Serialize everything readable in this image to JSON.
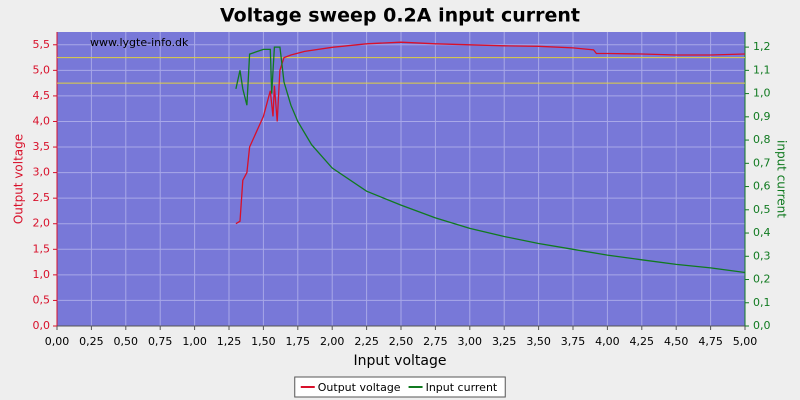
{
  "chart_data": {
    "type": "line",
    "title": "Voltage sweep 0.2A input current",
    "watermark": "www.lygte-info.dk",
    "x_label": "Input voltage",
    "y_label": "Output voltage",
    "y2_label": "input current",
    "xlim": [
      0,
      5
    ],
    "ylim": [
      0,
      5.75
    ],
    "y2lim": [
      0,
      1.265
    ],
    "grid": true,
    "legend": "bottom",
    "reference_lines": {
      "color": "#e0d040",
      "values": [
        4.75,
        5.25
      ]
    },
    "xticks": [
      {
        "value": 0,
        "label": "0,00"
      },
      {
        "value": 0.25,
        "label": "0,25"
      },
      {
        "value": 0.5,
        "label": "0,50"
      },
      {
        "value": 0.75,
        "label": "0,75"
      },
      {
        "value": 1,
        "label": "1,00"
      },
      {
        "value": 1.25,
        "label": "1,25"
      },
      {
        "value": 1.5,
        "label": "1,50"
      },
      {
        "value": 1.75,
        "label": "1,75"
      },
      {
        "value": 2,
        "label": "2,00"
      },
      {
        "value": 2.25,
        "label": "2,25"
      },
      {
        "value": 2.5,
        "label": "2,50"
      },
      {
        "value": 2.75,
        "label": "2,75"
      },
      {
        "value": 3,
        "label": "3,00"
      },
      {
        "value": 3.25,
        "label": "3,25"
      },
      {
        "value": 3.5,
        "label": "3,50"
      },
      {
        "value": 3.75,
        "label": "3,75"
      },
      {
        "value": 4,
        "label": "4,00"
      },
      {
        "value": 4.25,
        "label": "4,25"
      },
      {
        "value": 4.5,
        "label": "4,50"
      },
      {
        "value": 4.75,
        "label": "4,75"
      },
      {
        "value": 5,
        "label": "5,00"
      }
    ],
    "yticks": [
      {
        "value": 0,
        "label": "0,0"
      },
      {
        "value": 0.5,
        "label": "0,5"
      },
      {
        "value": 1,
        "label": "1,0"
      },
      {
        "value": 1.5,
        "label": "1,5"
      },
      {
        "value": 2,
        "label": "2,0"
      },
      {
        "value": 2.5,
        "label": "2,5"
      },
      {
        "value": 3,
        "label": "3,0"
      },
      {
        "value": 3.5,
        "label": "3,5"
      },
      {
        "value": 4,
        "label": "4,0"
      },
      {
        "value": 4.5,
        "label": "4,5"
      },
      {
        "value": 5,
        "label": "5,0"
      },
      {
        "value": 5.5,
        "label": "5,5"
      }
    ],
    "y2ticks": [
      {
        "value": 0,
        "label": "0,0"
      },
      {
        "value": 0.1,
        "label": "0,1"
      },
      {
        "value": 0.2,
        "label": "0,2"
      },
      {
        "value": 0.3,
        "label": "0,3"
      },
      {
        "value": 0.4,
        "label": "0,4"
      },
      {
        "value": 0.5,
        "label": "0,5"
      },
      {
        "value": 0.6,
        "label": "0,6"
      },
      {
        "value": 0.7,
        "label": "0,7"
      },
      {
        "value": 0.8,
        "label": "0,8"
      },
      {
        "value": 0.9,
        "label": "0,9"
      },
      {
        "value": 1,
        "label": "1,0"
      },
      {
        "value": 1.1,
        "label": "1,1"
      },
      {
        "value": 1.2,
        "label": "1,2"
      }
    ],
    "series": [
      {
        "name": "Output voltage",
        "color": "#d8102a",
        "x": [
          1.3,
          1.33,
          1.35,
          1.38,
          1.4,
          1.45,
          1.5,
          1.55,
          1.57,
          1.58,
          1.6,
          1.62,
          1.65,
          1.7,
          1.8,
          2.0,
          2.25,
          2.5,
          2.75,
          3.0,
          3.25,
          3.5,
          3.75,
          3.9,
          3.92,
          4.0,
          4.25,
          4.5,
          4.75,
          5.0
        ],
        "values": [
          2.0,
          2.05,
          2.85,
          3.0,
          3.5,
          3.8,
          4.1,
          4.6,
          4.1,
          4.7,
          4.0,
          5.0,
          5.25,
          5.3,
          5.37,
          5.45,
          5.52,
          5.55,
          5.52,
          5.5,
          5.48,
          5.47,
          5.44,
          5.4,
          5.33,
          5.33,
          5.32,
          5.3,
          5.3,
          5.32
        ]
      },
      {
        "name": "Input current",
        "color": "#107a20",
        "axis": "y2",
        "x": [
          1.3,
          1.33,
          1.35,
          1.38,
          1.4,
          1.5,
          1.55,
          1.56,
          1.58,
          1.62,
          1.63,
          1.65,
          1.7,
          1.75,
          1.85,
          2.0,
          2.25,
          2.5,
          2.75,
          3.0,
          3.25,
          3.5,
          3.75,
          4.0,
          4.25,
          4.5,
          4.75,
          5.0
        ],
        "values": [
          1.02,
          1.1,
          1.02,
          0.95,
          1.17,
          1.19,
          1.19,
          1.0,
          1.2,
          1.2,
          1.15,
          1.05,
          0.95,
          0.88,
          0.78,
          0.68,
          0.58,
          0.52,
          0.465,
          0.42,
          0.385,
          0.355,
          0.33,
          0.305,
          0.285,
          0.265,
          0.25,
          0.23
        ]
      }
    ]
  }
}
